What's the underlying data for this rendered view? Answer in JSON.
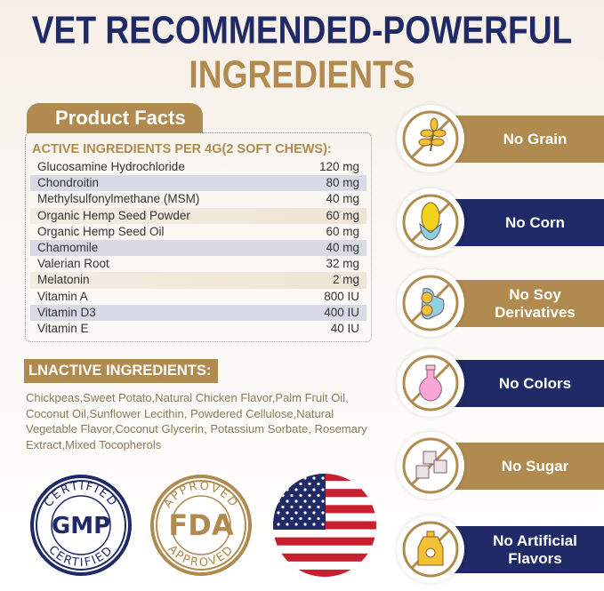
{
  "title": {
    "line1": "VET RECOMMENDED-POWERFUL",
    "line2": "INGREDIENTS"
  },
  "product_facts": {
    "tab_label": "Product Facts",
    "active_header": "ACTIVE INGREDIENTS PER 4G(2 SOFT CHEWS):",
    "rows": [
      {
        "name": "Glucosamine Hydrochloride",
        "amount": "120 mg"
      },
      {
        "name": "Chondroitin",
        "amount": "80 mg"
      },
      {
        "name": "Methylsulfonylmethane (MSM)",
        "amount": "40 mg"
      },
      {
        "name": "Organic Hemp Seed Powder",
        "amount": "60 mg"
      },
      {
        "name": "Organic Hemp Seed Oil",
        "amount": "60 mg"
      },
      {
        "name": "Chamomile",
        "amount": "40 mg"
      },
      {
        "name": "Valerian Root",
        "amount": "32 mg"
      },
      {
        "name": "Melatonin",
        "amount": "2 mg"
      },
      {
        "name": "Vitamin A",
        "amount": "800 IU"
      },
      {
        "name": "Vitamin D3",
        "amount": "400 IU"
      },
      {
        "name": "Vitamin E",
        "amount": "40 IU"
      }
    ]
  },
  "inactive": {
    "header": "LNACTIVE INGREDIENTS:",
    "text": "Chickpeas,Sweet Potato,Natural Chicken Flavor,Palm Fruit Oil, Coconut Oil,Sunflower Lecithin, Powdered Cellulose,Natural Vegetable Flavor,Coconut Glycerin, Potassium Sorbate, Rosemary Extract,Mixed Tocopherols"
  },
  "badges": {
    "gmp": {
      "top": "CERTIFIED",
      "center": "GMP",
      "bottom": "CERTIFIED"
    },
    "fda": {
      "top": "APPROVED",
      "center": "FDA",
      "bottom": "APPROVED"
    },
    "flag": "us-flag"
  },
  "features": [
    {
      "label": "No Grain",
      "icon": "wheat-icon",
      "color": "#b08a4e"
    },
    {
      "label": "No Corn",
      "icon": "corn-icon",
      "color": "#1f2a66"
    },
    {
      "label": "No Soy Derivatives",
      "icon": "soybean-icon",
      "color": "#b08a4e"
    },
    {
      "label": "No Colors",
      "icon": "flask-icon",
      "color": "#1f2a66"
    },
    {
      "label": "No Sugar",
      "icon": "sugar-cubes-icon",
      "color": "#b08a4e"
    },
    {
      "label": "No Artificial Flavors",
      "icon": "flavor-bottle-icon",
      "color": "#1f2a66"
    }
  ],
  "colors": {
    "brown": "#b08a4e",
    "navy": "#1f2a66"
  }
}
